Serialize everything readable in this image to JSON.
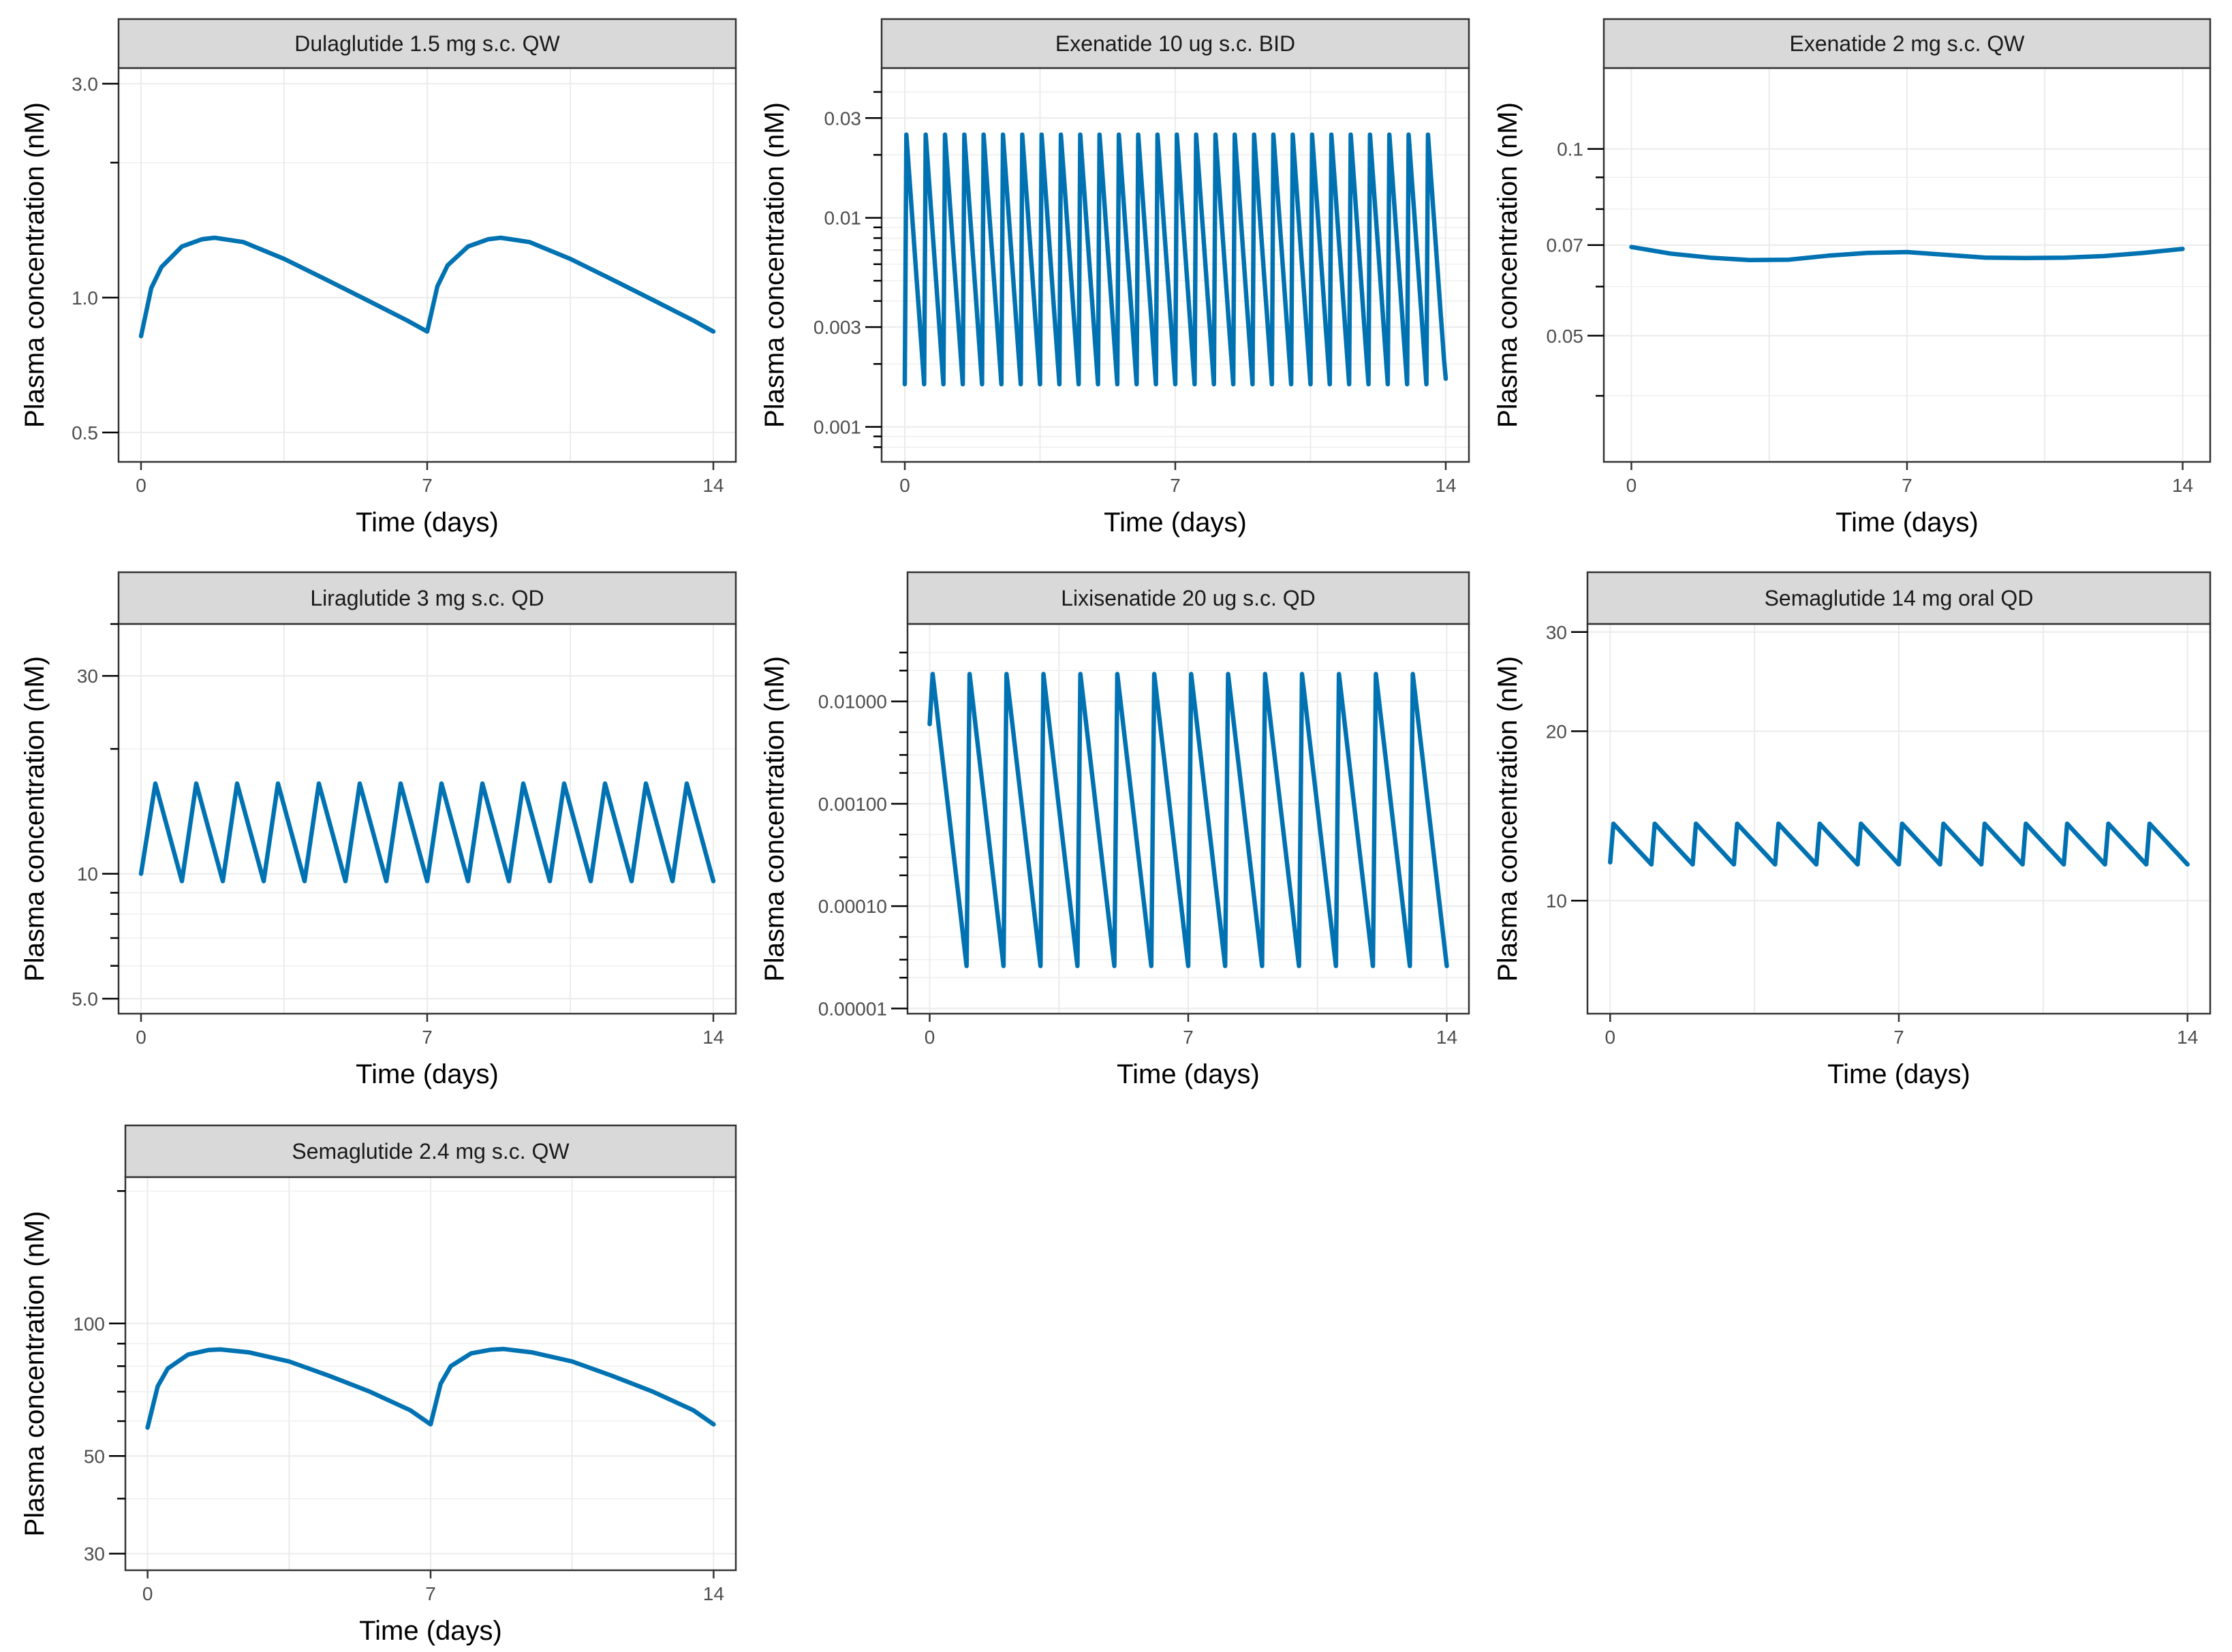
{
  "figure": {
    "line_color": "#0072B2",
    "strip_fill": "#d9d9d9",
    "grid_color": "#ebebeb",
    "frame_color": "#333333"
  },
  "chart_data": [
    {
      "type": "line",
      "title": "Dulaglutide 1.5 mg s.c. QW",
      "xlabel": "Time (days)",
      "ylabel": "Plasma concentration (nM)",
      "y_scale": "log",
      "xlim": [
        -0.55,
        14.55
      ],
      "ylim": [
        0.43,
        3.25
      ],
      "x_ticks": [
        0,
        7,
        14
      ],
      "y_ticks": [
        0.5,
        1.0,
        3.0
      ],
      "y_minor_ticks": [
        2.0
      ],
      "grid": true,
      "series": [
        {
          "x": [
            0,
            0.25,
            0.5,
            1,
            1.5,
            1.8,
            2.5,
            3.5,
            4.5,
            5.5,
            6.5,
            7,
            7.25,
            7.5,
            8,
            8.5,
            8.8,
            9.5,
            10.5,
            11.5,
            12.5,
            13.5,
            14
          ],
          "y": [
            0.82,
            1.05,
            1.17,
            1.3,
            1.35,
            1.36,
            1.33,
            1.22,
            1.1,
            0.99,
            0.89,
            0.84,
            1.06,
            1.18,
            1.3,
            1.35,
            1.36,
            1.33,
            1.22,
            1.1,
            0.99,
            0.89,
            0.84
          ]
        }
      ]
    },
    {
      "type": "line",
      "title": "Exenatide 10 ug s.c. BID",
      "xlabel": "Time (days)",
      "ylabel": "Plasma concentration (nM)",
      "y_scale": "log",
      "xlim": [
        -0.6,
        14.6
      ],
      "ylim": [
        0.00068,
        0.052
      ],
      "x_ticks": [
        0,
        7,
        14
      ],
      "y_ticks": [
        0.001,
        0.003,
        0.01,
        0.03
      ],
      "y_minor_ticks": [
        0.0008,
        0.0009,
        0.002,
        0.004,
        0.005,
        0.006,
        0.007,
        0.008,
        0.009,
        0.02,
        0.04
      ],
      "grid": true,
      "pattern": {
        "period_days": 0.5,
        "peak_offset_days": 0.04,
        "peak": 0.025,
        "trough": 0.0016,
        "end_value": 0.0017
      }
    },
    {
      "type": "line",
      "title": "Exenatide 2 mg s.c. QW",
      "xlabel": "Time (days)",
      "ylabel": "Plasma concentration (nM)",
      "y_scale": "log",
      "xlim": [
        -0.7,
        14.7
      ],
      "ylim": [
        0.0313,
        0.135
      ],
      "x_ticks": [
        0,
        7,
        14
      ],
      "y_ticks": [
        0.05,
        0.07,
        0.1
      ],
      "y_minor_ticks": [
        0.04,
        0.06,
        0.08,
        0.09
      ],
      "grid": true,
      "series": [
        {
          "x": [
            0,
            1,
            2,
            3,
            4,
            5,
            6,
            7,
            8,
            9,
            10,
            11,
            12,
            13,
            14
          ],
          "y": [
            0.0695,
            0.0678,
            0.0668,
            0.0662,
            0.0663,
            0.0673,
            0.068,
            0.0682,
            0.0675,
            0.0668,
            0.0667,
            0.0668,
            0.0672,
            0.068,
            0.069
          ]
        }
      ]
    },
    {
      "type": "line",
      "title": "Liraglutide 3 mg s.c. QD",
      "xlabel": "Time (days)",
      "ylabel": "Plasma concentration (nM)",
      "y_scale": "log",
      "xlim": [
        -0.55,
        14.55
      ],
      "ylim": [
        4.6,
        40
      ],
      "x_ticks": [
        0,
        7,
        14
      ],
      "y_ticks": [
        5,
        10,
        30
      ],
      "y_minor_ticks": [
        6,
        7,
        8,
        9,
        20,
        40
      ],
      "grid": true,
      "pattern": {
        "period_days": 1,
        "peak_offset_days": 0.35,
        "peak": 16.5,
        "trough": 9.6,
        "start_value": 10.0
      }
    },
    {
      "type": "line",
      "title": "Lixisenatide 20 ug s.c. QD",
      "xlabel": "Time (days)",
      "ylabel": "Plasma concentration (nM)",
      "y_scale": "log",
      "xlim": [
        -0.6,
        14.6
      ],
      "ylim": [
        8.9e-06,
        0.057
      ],
      "x_ticks": [
        0,
        7,
        14
      ],
      "y_ticks": [
        1e-05,
        0.0001,
        0.001,
        0.01
      ],
      "y_tick_labels": [
        "0.00001",
        "0.00010",
        "0.00100",
        "0.01000"
      ],
      "y_minor_ticks": [
        2e-05,
        3e-05,
        5e-05,
        0.0002,
        0.0003,
        0.0005,
        0.002,
        0.003,
        0.005,
        0.02,
        0.03
      ],
      "grid": true,
      "pattern": {
        "period_days": 1,
        "peak_offset_days": 0.08,
        "peak": 0.0185,
        "trough": 2.6e-05,
        "start_value": 0.006
      }
    },
    {
      "type": "line",
      "title": "Semaglutide 14 mg oral QD",
      "xlabel": "Time (days)",
      "ylabel": "Plasma concentration (nM)",
      "y_scale": "log",
      "xlim": [
        -0.55,
        14.55
      ],
      "ylim": [
        6.3,
        31
      ],
      "x_ticks": [
        0,
        7,
        14
      ],
      "y_ticks": [
        10,
        20,
        30
      ],
      "y_minor_ticks": [],
      "grid": true,
      "pattern": {
        "period_days": 1,
        "peak_offset_days": 0.08,
        "peak": 13.7,
        "trough": 11.6,
        "start_value": 11.7
      }
    },
    {
      "type": "line",
      "title": "Semaglutide 2.4 mg s.c. QW",
      "xlabel": "Time (days)",
      "ylabel": "Plasma concentration (nM)",
      "y_scale": "log",
      "xlim": [
        -0.55,
        14.55
      ],
      "ylim": [
        27.5,
        215
      ],
      "x_ticks": [
        0,
        7,
        14
      ],
      "y_ticks": [
        30,
        50,
        100
      ],
      "y_minor_ticks": [
        40,
        60,
        70,
        80,
        90,
        200
      ],
      "grid": true,
      "series": [
        {
          "x": [
            0,
            0.25,
            0.5,
            1,
            1.5,
            1.8,
            2.5,
            3.5,
            4.5,
            5.5,
            6.5,
            7,
            7.25,
            7.5,
            8,
            8.5,
            8.8,
            9.5,
            10.5,
            11.5,
            12.5,
            13.5,
            14
          ],
          "y": [
            58,
            72,
            79,
            85,
            87,
            87.3,
            86,
            82,
            76,
            70,
            63.5,
            59,
            73,
            80,
            85.5,
            87.2,
            87.5,
            86,
            82,
            76,
            70,
            63.5,
            59
          ]
        }
      ]
    }
  ]
}
